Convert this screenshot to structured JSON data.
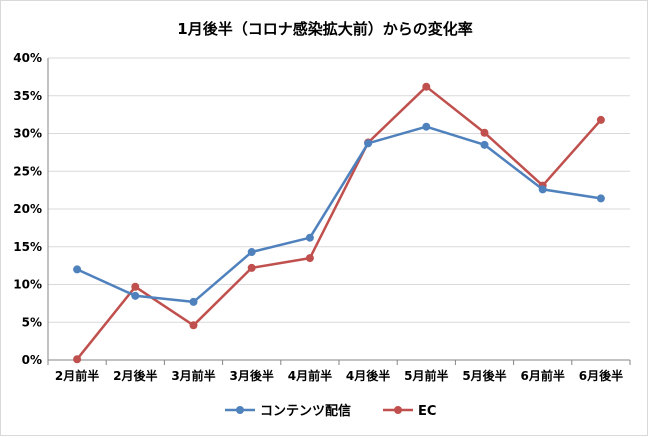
{
  "chart_data": {
    "type": "line",
    "title": "1月後半（コロナ感染拡大前）からの変化率",
    "xlabel": "",
    "ylabel": "",
    "categories": [
      "2月前半",
      "2月後半",
      "3月前半",
      "3月後半",
      "4月前半",
      "4月後半",
      "5月前半",
      "5月後半",
      "6月前半",
      "6月後半"
    ],
    "y_ticks": [
      "0%",
      "5%",
      "10%",
      "15%",
      "20%",
      "25%",
      "30%",
      "35%",
      "40%"
    ],
    "ylim": [
      0,
      40
    ],
    "grid": true,
    "legend_position": "bottom",
    "series": [
      {
        "name": "コンテンツ配信",
        "color": "#4f81bd",
        "values": [
          12.0,
          8.5,
          7.7,
          14.3,
          16.2,
          28.7,
          30.9,
          28.5,
          22.6,
          21.4
        ]
      },
      {
        "name": "EC",
        "color": "#c0504d",
        "values": [
          0.1,
          9.7,
          4.6,
          12.2,
          13.5,
          28.8,
          36.2,
          30.1,
          23.1,
          31.8
        ]
      }
    ]
  }
}
